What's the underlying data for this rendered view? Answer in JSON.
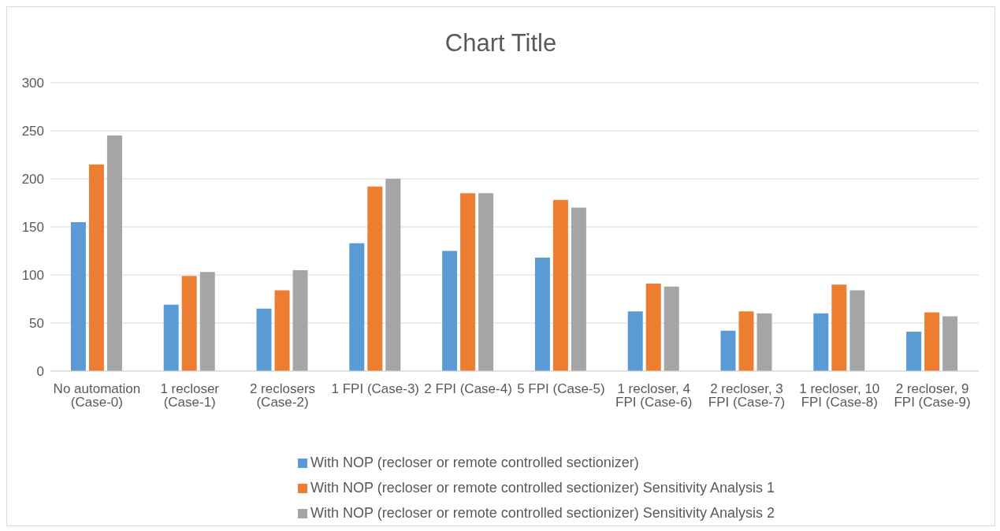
{
  "chart_data": {
    "type": "bar",
    "title": "Chart Title",
    "categories": [
      "No automation (Case-0)",
      "1 recloser (Case-1)",
      "2 reclosers (Case-2)",
      "1 FPI (Case-3)",
      "2 FPI (Case-4)",
      "5 FPI (Case-5)",
      "1 recloser, 4 FPI (Case-6)",
      "2 recloser, 3 FPI (Case-7)",
      "1 recloser, 10 FPI (Case-8)",
      "2 recloser, 9 FPI (Case-9)"
    ],
    "series": [
      {
        "name": "With NOP (recloser or remote controlled sectionizer)",
        "color": "#5b9bd5",
        "values": [
          155,
          69,
          65,
          133,
          125,
          118,
          62,
          42,
          60,
          41
        ]
      },
      {
        "name": "With NOP (recloser or remote controlled sectionizer) Sensitivity Analysis 1",
        "color": "#ed7d31",
        "values": [
          215,
          99,
          84,
          192,
          185,
          178,
          91,
          62,
          90,
          61
        ]
      },
      {
        "name": "With NOP (recloser or remote controlled sectionizer) Sensitivity Analysis 2",
        "color": "#a5a5a5",
        "values": [
          245,
          103,
          105,
          200,
          185,
          170,
          88,
          60,
          84,
          57
        ]
      }
    ],
    "ylim": [
      0,
      300
    ],
    "yticks": [
      0,
      50,
      100,
      150,
      200,
      250,
      300
    ],
    "grid": "y",
    "legend": "bottom"
  }
}
